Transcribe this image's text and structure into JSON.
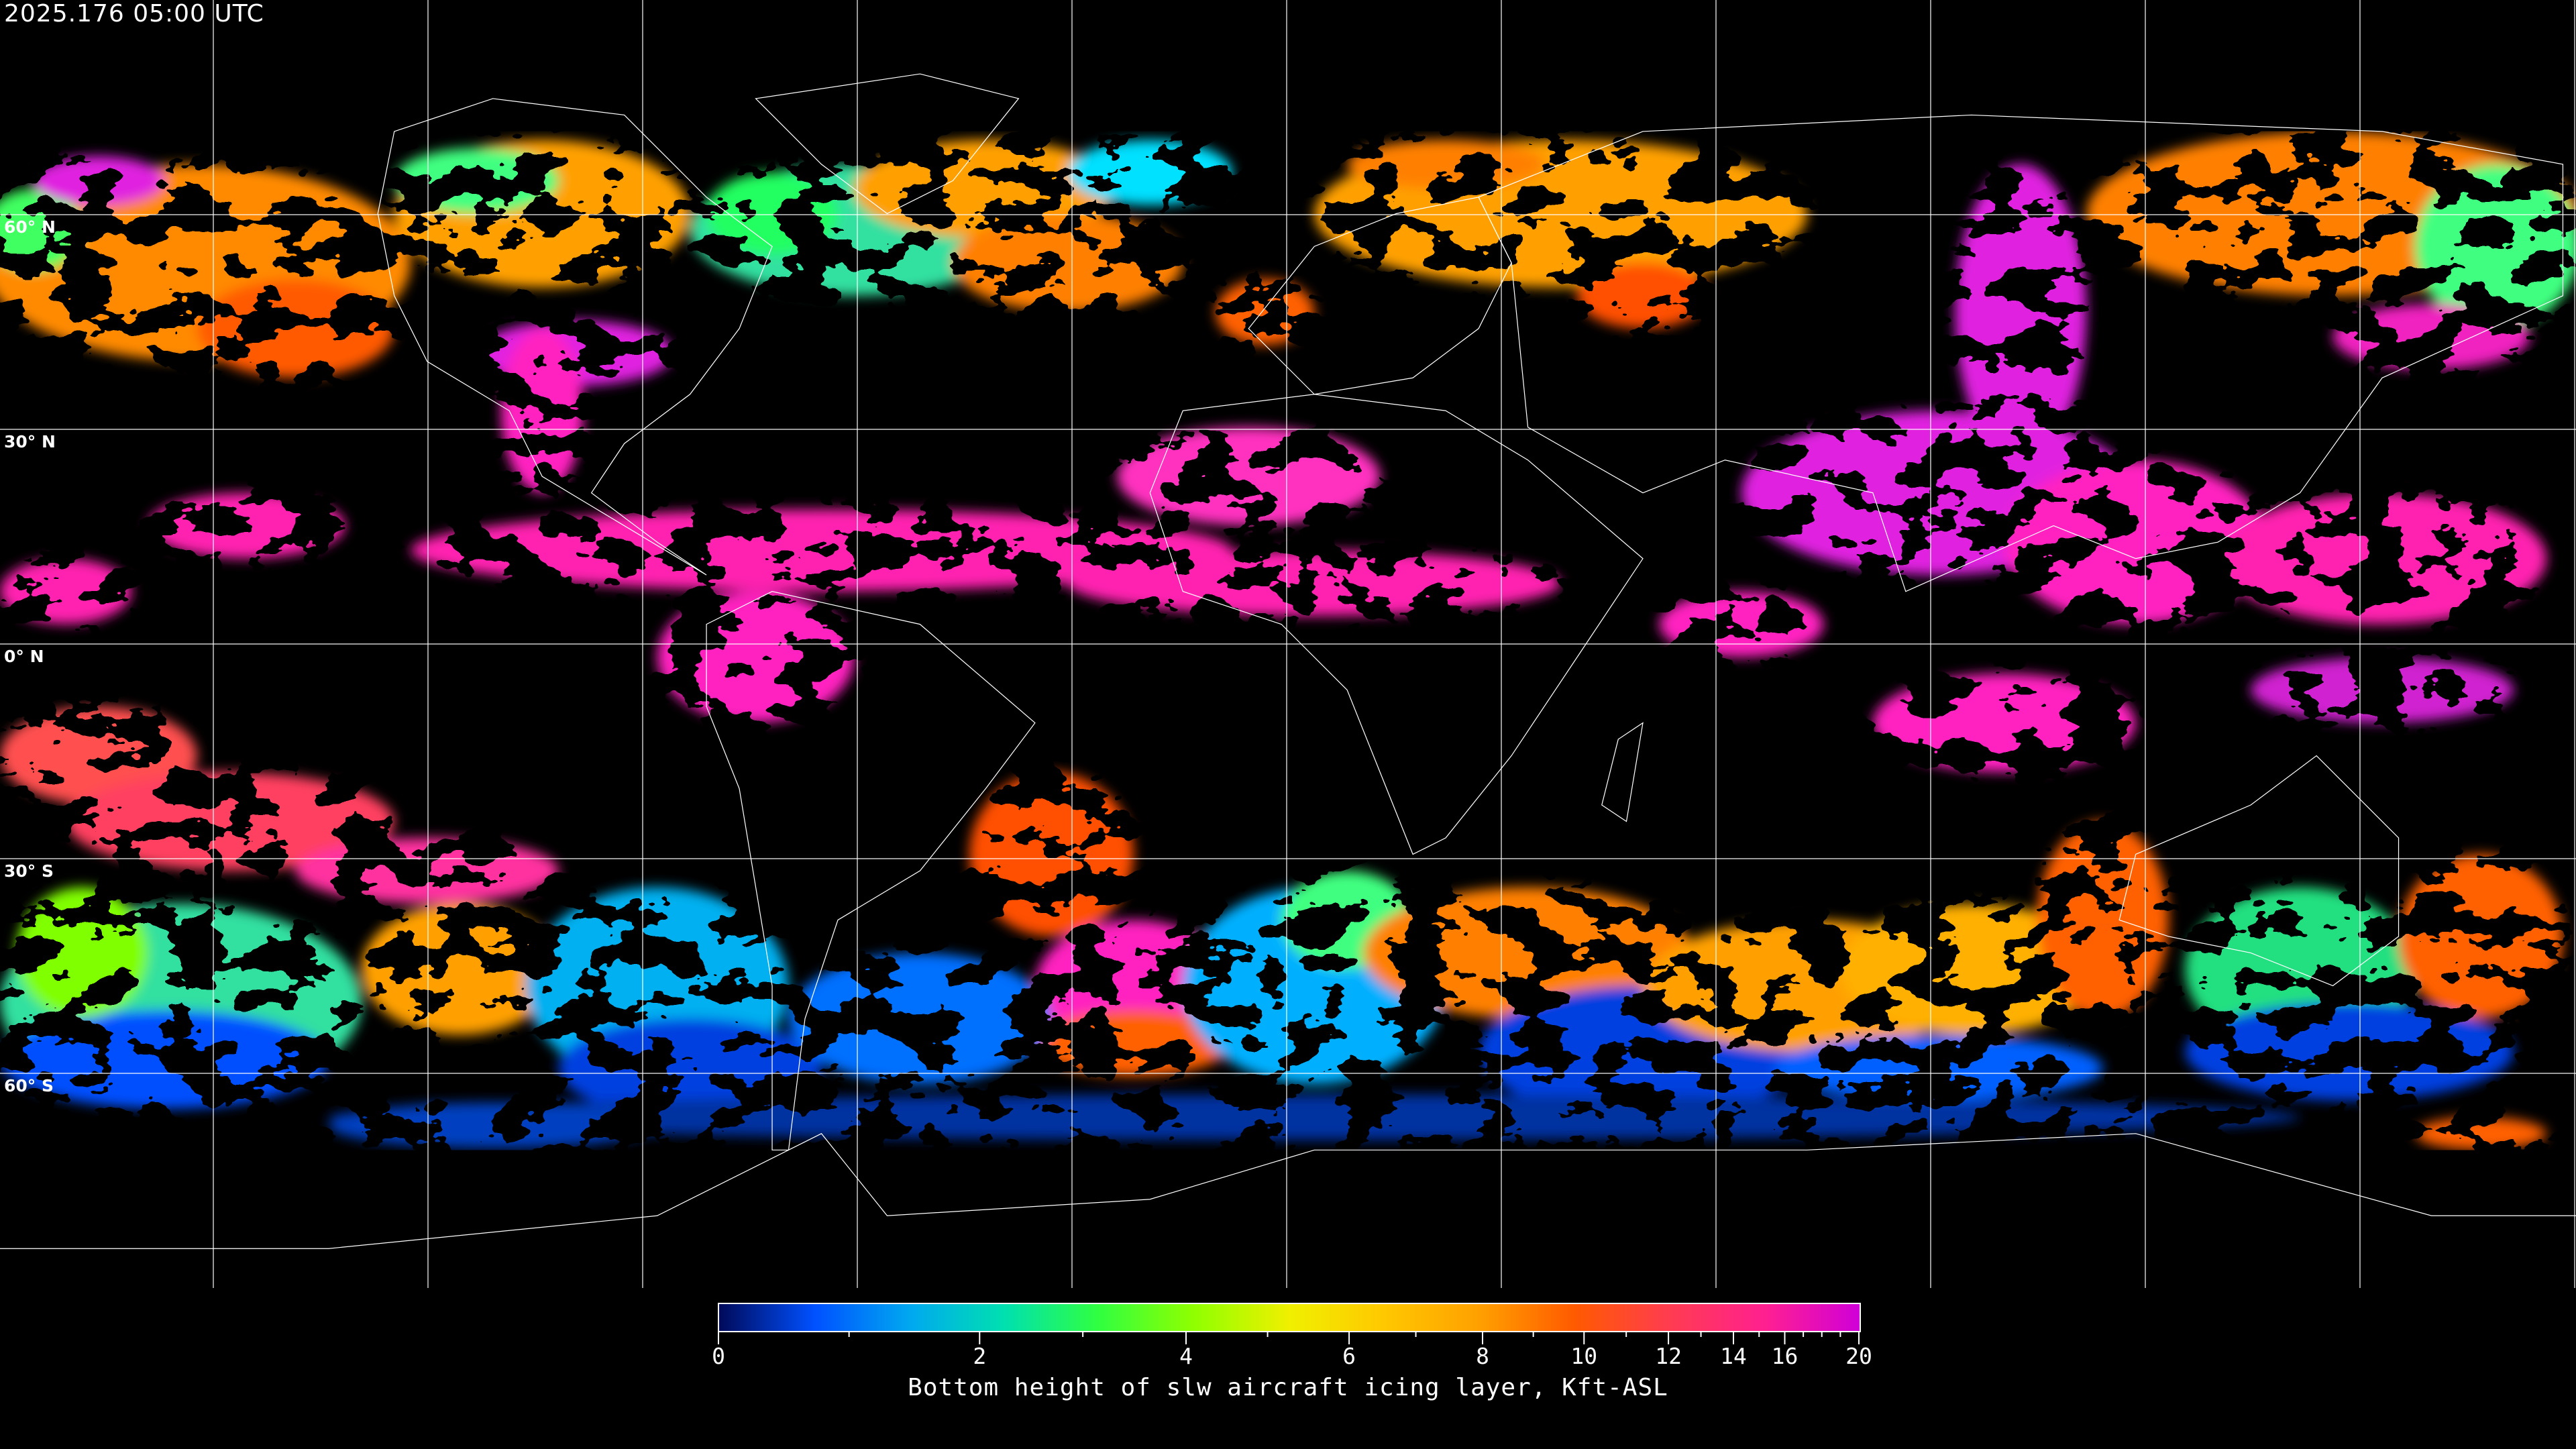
{
  "title": "2025.176 05:00 UTC",
  "map": {
    "projection": "equirectangular",
    "lat_gridlines": [
      60,
      30,
      0,
      -30,
      -60
    ],
    "lat_labels": [
      "60° N",
      "30° N",
      "0° N",
      "30° S",
      "60° S"
    ],
    "lon_grid_spacing_deg": 30,
    "coastline_color": "#ffffff",
    "gridline_color": "#ffffff",
    "background_color": "#000000"
  },
  "colorbar": {
    "label": "Bottom height of slw aircraft icing layer, Kft-ASL",
    "min": 0,
    "max": 20,
    "major_ticks": [
      "0",
      "2",
      "4",
      "6",
      "8",
      "10",
      "12",
      "14",
      "16",
      "20"
    ],
    "minor_ticks": [
      1,
      3,
      5,
      7,
      9,
      11,
      13,
      15,
      17,
      18,
      19
    ],
    "colormap": [
      "#000a5a",
      "#0050ff",
      "#00a8f0",
      "#00e0b0",
      "#30ff40",
      "#90ff00",
      "#f0f000",
      "#ffc800",
      "#ffa000",
      "#ff5a00",
      "#ff3c50",
      "#ff2090",
      "#d000d8"
    ]
  }
}
